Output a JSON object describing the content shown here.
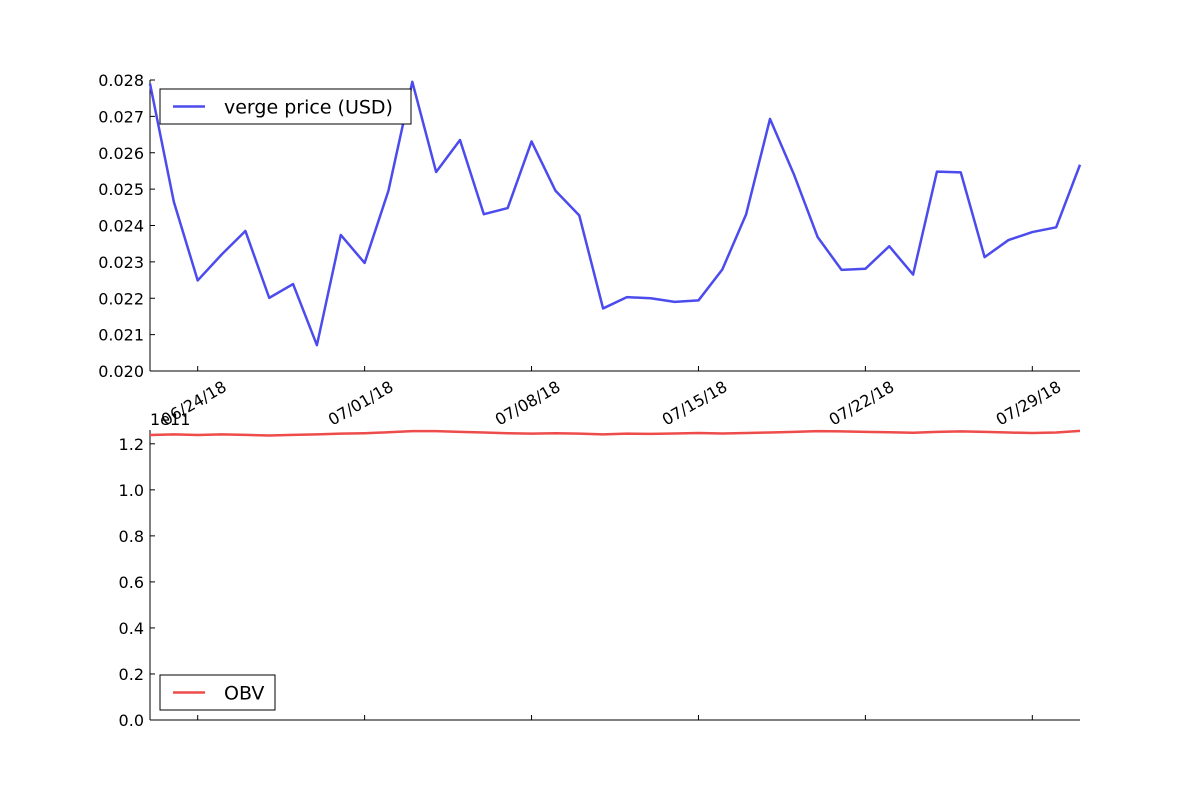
{
  "chart_data": [
    {
      "type": "line",
      "x": [
        "06/22/18",
        "06/23/18",
        "06/24/18",
        "06/25/18",
        "06/26/18",
        "06/27/18",
        "06/28/18",
        "06/29/18",
        "06/30/18",
        "07/01/18",
        "07/02/18",
        "07/03/18",
        "07/04/18",
        "07/05/18",
        "07/06/18",
        "07/07/18",
        "07/08/18",
        "07/09/18",
        "07/10/18",
        "07/11/18",
        "07/12/18",
        "07/13/18",
        "07/14/18",
        "07/15/18",
        "07/16/18",
        "07/17/18",
        "07/18/18",
        "07/19/18",
        "07/20/18",
        "07/21/18",
        "07/22/18",
        "07/23/18",
        "07/24/18",
        "07/25/18",
        "07/26/18",
        "07/27/18",
        "07/28/18",
        "07/29/18",
        "07/30/18",
        "07/31/18"
      ],
      "series": [
        {
          "name": "verge price (USD)",
          "color": "#4b4bee",
          "values": [
            0.0279,
            0.02465,
            0.02249,
            0.0232,
            0.02385,
            0.02201,
            0.02239,
            0.02071,
            0.02374,
            0.02297,
            0.02496,
            0.02795,
            0.02547,
            0.02635,
            0.02431,
            0.02448,
            0.02631,
            0.02496,
            0.02428,
            0.02172,
            0.02203,
            0.022,
            0.0219,
            0.02194,
            0.02279,
            0.02431,
            0.02693,
            0.02541,
            0.02368,
            0.02278,
            0.02281,
            0.02343,
            0.02265,
            0.02548,
            0.02546,
            0.02313,
            0.0236,
            0.02382,
            0.02395,
            0.02567
          ]
        }
      ],
      "xtick_labels": [
        "06/24/18",
        "07/01/18",
        "07/08/18",
        "07/15/18",
        "07/22/18",
        "07/29/18"
      ],
      "ylim": [
        0.02,
        0.028
      ],
      "ytick_labels": [
        "0.020",
        "0.021",
        "0.022",
        "0.023",
        "0.024",
        "0.025",
        "0.026",
        "0.027",
        "0.028"
      ],
      "legend_position": "upper-left",
      "grid": false
    },
    {
      "type": "line",
      "x": [
        "06/22/18",
        "06/23/18",
        "06/24/18",
        "06/25/18",
        "06/26/18",
        "06/27/18",
        "06/28/18",
        "06/29/18",
        "06/30/18",
        "07/01/18",
        "07/02/18",
        "07/03/18",
        "07/04/18",
        "07/05/18",
        "07/06/18",
        "07/07/18",
        "07/08/18",
        "07/09/18",
        "07/10/18",
        "07/11/18",
        "07/12/18",
        "07/13/18",
        "07/14/18",
        "07/15/18",
        "07/16/18",
        "07/17/18",
        "07/18/18",
        "07/19/18",
        "07/20/18",
        "07/21/18",
        "07/22/18",
        "07/23/18",
        "07/24/18",
        "07/25/18",
        "07/26/18",
        "07/27/18",
        "07/28/18",
        "07/29/18",
        "07/30/18",
        "07/31/18"
      ],
      "series": [
        {
          "name": "OBV",
          "color": "#ee4b4b",
          "values": [
            1.238,
            1.241,
            1.238,
            1.241,
            1.239,
            1.236,
            1.239,
            1.241,
            1.244,
            1.246,
            1.25,
            1.255,
            1.255,
            1.252,
            1.249,
            1.246,
            1.244,
            1.246,
            1.244,
            1.241,
            1.244,
            1.243,
            1.245,
            1.247,
            1.245,
            1.247,
            1.249,
            1.252,
            1.255,
            1.254,
            1.252,
            1.25,
            1.248,
            1.252,
            1.254,
            1.252,
            1.249,
            1.247,
            1.249,
            1.256
          ]
        }
      ],
      "ylim": [
        0.0,
        1.26
      ],
      "ytick_labels": [
        "0.0",
        "0.2",
        "0.4",
        "0.6",
        "0.8",
        "1.0",
        "1.2"
      ],
      "offset_text": "1e11",
      "legend_position": "lower-left",
      "grid": false
    }
  ]
}
